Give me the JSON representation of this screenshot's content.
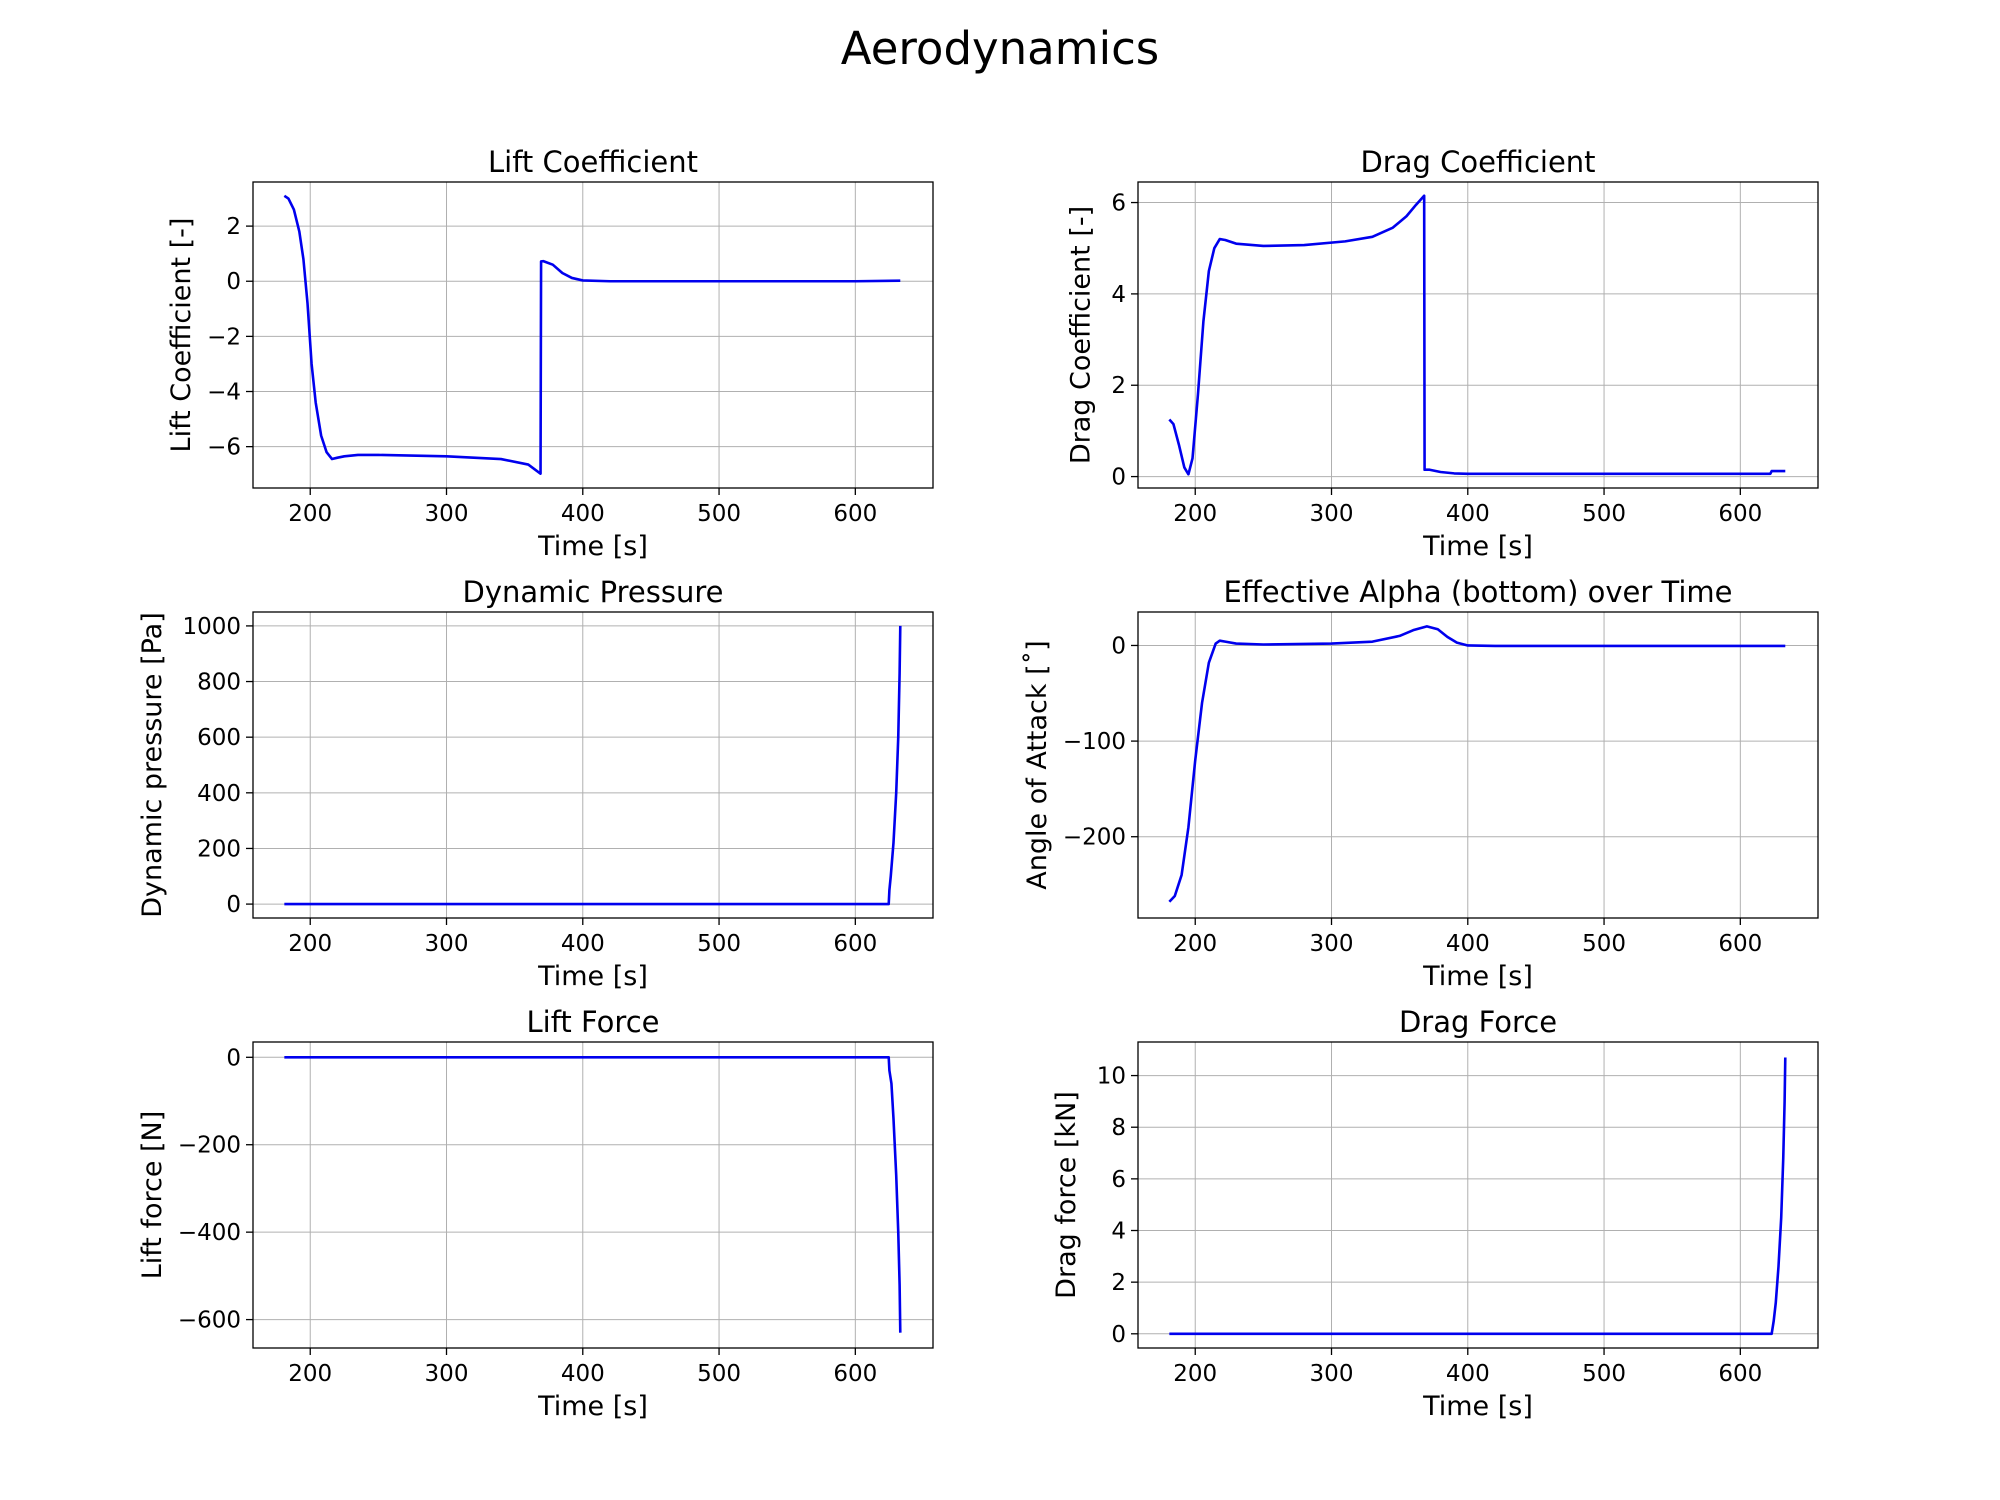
{
  "figure": {
    "title": "Aerodynamics"
  },
  "chart_data": [
    {
      "type": "line",
      "title": "Lift Coefficient",
      "xlabel": "Time [s]",
      "ylabel": "Lift Coefficient [-]",
      "xlim": [
        158,
        657
      ],
      "ylim": [
        -7.5,
        3.6
      ],
      "xticks": [
        200,
        300,
        400,
        500,
        600
      ],
      "xtick_labels": [
        "200",
        "300",
        "400",
        "500",
        "600"
      ],
      "yticks": [
        2,
        0,
        -2,
        -4,
        -6
      ],
      "ytick_labels": [
        "2",
        "0",
        "−2",
        "−4",
        "−6"
      ],
      "grid": true,
      "color": "#0000ee",
      "x": [
        181,
        184,
        188,
        192,
        195,
        198,
        201,
        204,
        208,
        212,
        216,
        220,
        225,
        235,
        250,
        300,
        340,
        360,
        369,
        369.4,
        371,
        378,
        385,
        392,
        400,
        420,
        500,
        600,
        633
      ],
      "y": [
        3.1,
        3.0,
        2.6,
        1.8,
        0.8,
        -0.8,
        -3.0,
        -4.4,
        -5.6,
        -6.2,
        -6.45,
        -6.4,
        -6.35,
        -6.3,
        -6.3,
        -6.35,
        -6.45,
        -6.65,
        -6.98,
        0.72,
        0.73,
        0.6,
        0.3,
        0.12,
        0.03,
        0.0,
        0.0,
        0.0,
        0.02
      ]
    },
    {
      "type": "line",
      "title": "Drag Coefficient",
      "xlabel": "Time [s]",
      "ylabel": "Drag Coefficient [-]",
      "xlim": [
        158,
        657
      ],
      "ylim": [
        -0.25,
        6.45
      ],
      "xticks": [
        200,
        300,
        400,
        500,
        600
      ],
      "xtick_labels": [
        "200",
        "300",
        "400",
        "500",
        "600"
      ],
      "yticks": [
        6,
        4,
        2,
        0
      ],
      "ytick_labels": [
        "6",
        "4",
        "2",
        "0"
      ],
      "grid": true,
      "color": "#0000ee",
      "x": [
        181,
        184,
        188,
        192,
        195,
        198,
        202,
        206,
        210,
        214,
        218,
        222,
        230,
        250,
        280,
        310,
        330,
        345,
        355,
        362,
        368,
        368.3,
        372,
        380,
        390,
        400,
        500,
        622,
        623,
        625,
        633
      ],
      "y": [
        1.25,
        1.15,
        0.7,
        0.2,
        0.05,
        0.4,
        1.8,
        3.4,
        4.5,
        5.0,
        5.2,
        5.18,
        5.1,
        5.05,
        5.07,
        5.15,
        5.25,
        5.45,
        5.7,
        5.95,
        6.15,
        0.15,
        0.15,
        0.1,
        0.07,
        0.06,
        0.06,
        0.06,
        0.12,
        0.12,
        0.12
      ]
    },
    {
      "type": "line",
      "title": "Dynamic Pressure",
      "xlabel": "Time [s]",
      "ylabel": "Dynamic pressure [Pa]",
      "xlim": [
        158,
        657
      ],
      "ylim": [
        -50,
        1050
      ],
      "xticks": [
        200,
        300,
        400,
        500,
        600
      ],
      "xtick_labels": [
        "200",
        "300",
        "400",
        "500",
        "600"
      ],
      "yticks": [
        1000,
        800,
        600,
        400,
        200,
        0
      ],
      "ytick_labels": [
        "1000",
        "800",
        "600",
        "400",
        "200",
        "0"
      ],
      "grid": true,
      "color": "#0000ee",
      "x": [
        181,
        300,
        500,
        620,
        624.5,
        625,
        626,
        628,
        630,
        631.5,
        632.5,
        633
      ],
      "y": [
        0,
        0,
        0,
        0,
        0,
        50,
        100,
        220,
        400,
        600,
        830,
        1000
      ]
    },
    {
      "type": "line",
      "title": "Effective Alpha (bottom) over Time",
      "xlabel": "Time [s]",
      "ylabel": "Angle of Attack [˚]",
      "xlim": [
        158,
        657
      ],
      "ylim": [
        -285,
        35
      ],
      "xticks": [
        200,
        300,
        400,
        500,
        600
      ],
      "xtick_labels": [
        "200",
        "300",
        "400",
        "500",
        "600"
      ],
      "yticks": [
        0,
        -100,
        -200
      ],
      "ytick_labels": [
        "0",
        "−100",
        "−200"
      ],
      "grid": true,
      "color": "#0000ee",
      "x": [
        181,
        185,
        190,
        195,
        200,
        205,
        210,
        215,
        218,
        222,
        230,
        250,
        300,
        330,
        350,
        360,
        370,
        378,
        385,
        392,
        400,
        420,
        500,
        600,
        633
      ],
      "y": [
        -268,
        -262,
        -240,
        -190,
        -120,
        -60,
        -18,
        2,
        5,
        4,
        2,
        1,
        2,
        4,
        10,
        16,
        20,
        17,
        9,
        3,
        0,
        -0.5,
        -0.5,
        -0.5,
        -0.5
      ]
    },
    {
      "type": "line",
      "title": "Lift Force",
      "xlabel": "Time [s]",
      "ylabel": "Lift force [N]",
      "xlim": [
        158,
        657
      ],
      "ylim": [
        -665,
        35
      ],
      "xticks": [
        200,
        300,
        400,
        500,
        600
      ],
      "xtick_labels": [
        "200",
        "300",
        "400",
        "500",
        "600"
      ],
      "yticks": [
        0,
        -200,
        -400,
        -600
      ],
      "ytick_labels": [
        "0",
        "−200",
        "−400",
        "−600"
      ],
      "grid": true,
      "color": "#0000ee",
      "x": [
        181,
        300,
        500,
        624.5,
        625,
        626.5,
        628,
        630,
        631.5,
        632.5,
        633
      ],
      "y": [
        0,
        0,
        0,
        0,
        -30,
        -60,
        -140,
        -270,
        -400,
        -520,
        -630
      ]
    },
    {
      "type": "line",
      "title": "Drag Force",
      "xlabel": "Time [s]",
      "ylabel": "Drag force [kN]",
      "xlim": [
        158,
        657
      ],
      "ylim": [
        -0.55,
        11.3
      ],
      "xticks": [
        200,
        300,
        400,
        500,
        600
      ],
      "xtick_labels": [
        "200",
        "300",
        "400",
        "500",
        "600"
      ],
      "yticks": [
        10,
        8,
        6,
        4,
        2,
        0
      ],
      "ytick_labels": [
        "10",
        "8",
        "6",
        "4",
        "2",
        "0"
      ],
      "grid": true,
      "color": "#0000ee",
      "x": [
        181,
        300,
        500,
        622,
        623,
        624.5,
        626,
        628,
        630,
        631.5,
        632.5,
        633
      ],
      "y": [
        0,
        0,
        0,
        0,
        0,
        0.5,
        1.2,
        2.6,
        4.5,
        6.8,
        9.0,
        10.7
      ]
    }
  ]
}
